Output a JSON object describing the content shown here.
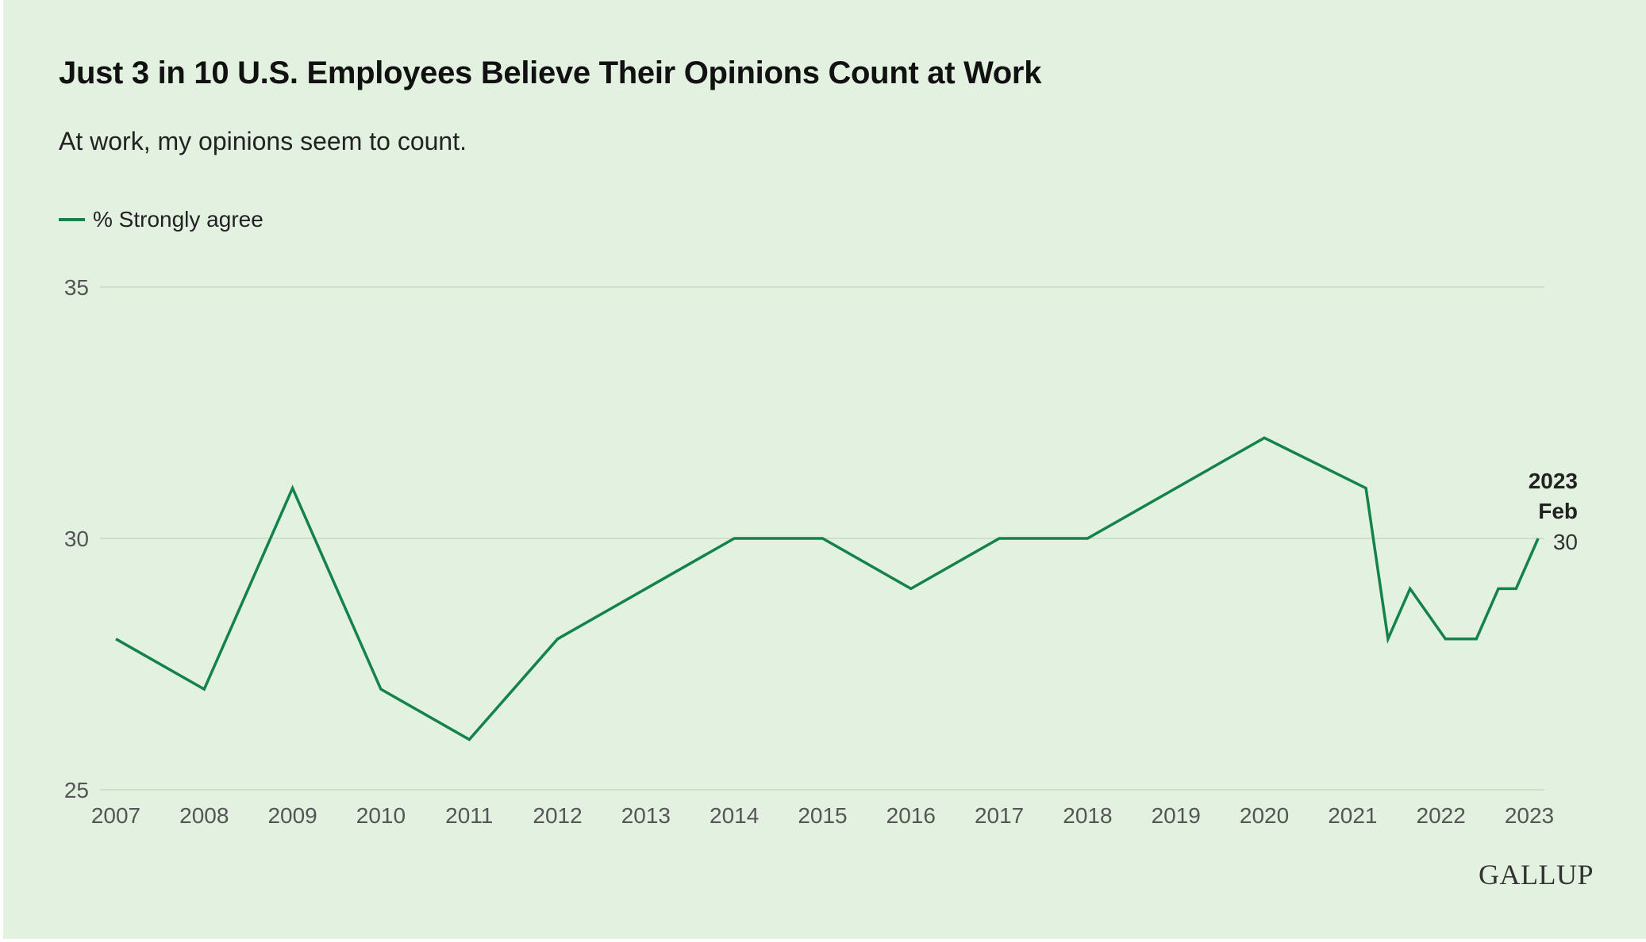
{
  "header": {
    "title": "Just 3 in 10 U.S. Employees Believe Their Opinions Count at Work",
    "subtitle": "At work, my opinions seem to count."
  },
  "legend": {
    "label": "% Strongly agree"
  },
  "logo": "GALLUP",
  "chart_data": {
    "type": "line",
    "title": "Just 3 in 10 U.S. Employees Believe Their Opinions Count at Work",
    "subtitle": "At work, my opinions seem to count.",
    "xlabel": "",
    "ylabel": "",
    "xlim": [
      2007,
      2023
    ],
    "ylim": [
      25,
      35
    ],
    "y_ticks": [
      25,
      30,
      35
    ],
    "x_ticks": [
      "2007",
      "2008",
      "2009",
      "2010",
      "2011",
      "2012",
      "2013",
      "2014",
      "2015",
      "2016",
      "2017",
      "2018",
      "2019",
      "2020",
      "2021",
      "2022",
      "2023"
    ],
    "grid": true,
    "legend_position": "top-left",
    "series": [
      {
        "name": "% Strongly agree",
        "color": "#13834a",
        "x": [
          2007,
          2008,
          2009,
          2010,
          2011,
          2012,
          2014,
          2015,
          2016,
          2017,
          2018,
          2020,
          2021.15,
          2021.4,
          2021.65,
          2022.05,
          2022.4,
          2022.65,
          2022.85,
          2023.1
        ],
        "y": [
          28,
          27,
          31,
          27,
          26,
          28,
          30,
          30,
          29,
          30,
          30,
          32,
          31,
          28,
          29,
          28,
          28,
          29,
          29,
          30
        ]
      }
    ],
    "annotation": {
      "year": "2023",
      "period": "Feb",
      "value": "30"
    }
  }
}
